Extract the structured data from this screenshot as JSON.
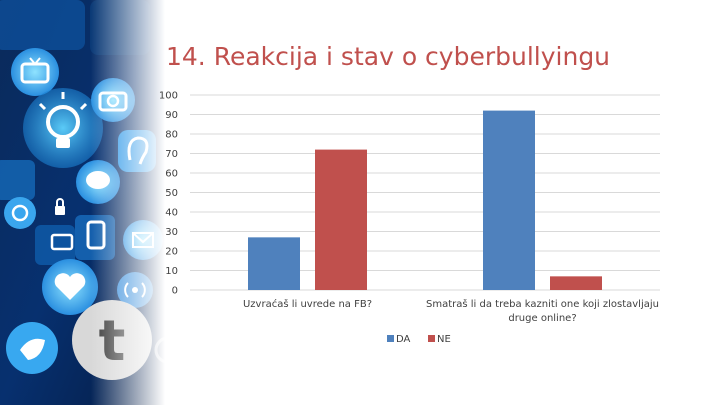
{
  "slide": {
    "title": "14. Reakcija i stav o cyberbullyingu"
  },
  "decoration": {
    "icons": [
      "tv-icon",
      "lightbulb-icon",
      "camera-icon",
      "ear-icon",
      "chat-bubble-icon",
      "lock-icon",
      "phone-icon",
      "heart-icon",
      "bird-icon",
      "tumblr-icon",
      "search-icon",
      "broadcast-icon",
      "briefcase-icon",
      "mail-icon",
      "at-icon"
    ]
  },
  "chart_data": {
    "type": "bar",
    "categories": [
      "Uzvraćaš li uvrede na FB?",
      "Smatraš li da treba kazniti one koji zlostavljaju druge online?"
    ],
    "category_lines": [
      [
        "Uzvraćaš li uvrede na FB?"
      ],
      [
        "Smatraš li da treba kazniti one koji zlostavljaju",
        "druge online?"
      ]
    ],
    "series": [
      {
        "name": "DA",
        "values": [
          27,
          92
        ],
        "color": "#4f81bd"
      },
      {
        "name": "NE",
        "values": [
          72,
          7
        ],
        "color": "#c0504d"
      }
    ],
    "ylim": [
      0,
      100
    ],
    "yticks": [
      "0",
      "10",
      "20",
      "30",
      "40",
      "50",
      "60",
      "70",
      "80",
      "90",
      "100"
    ],
    "grid": true,
    "legend": "bottom"
  }
}
